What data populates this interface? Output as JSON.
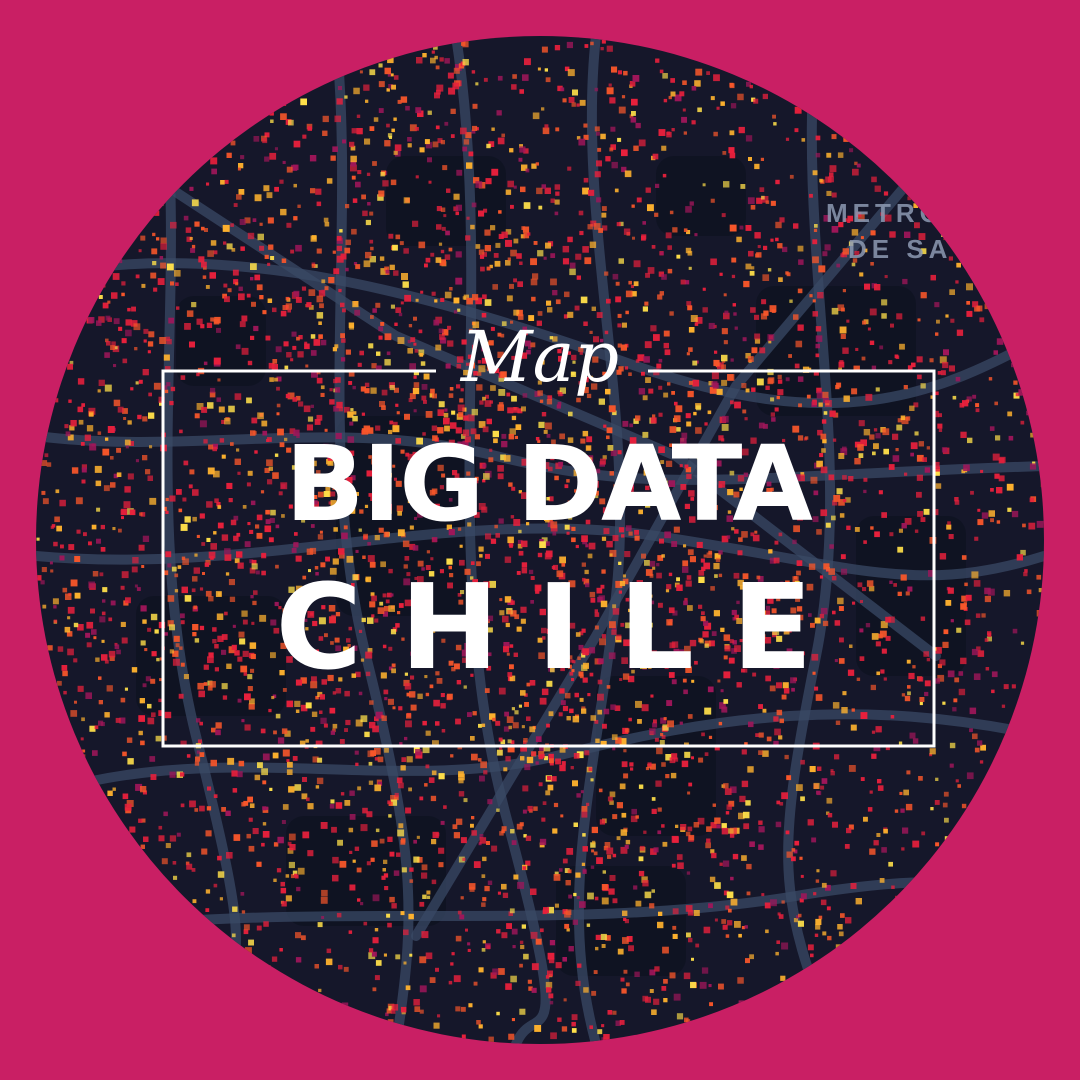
{
  "map": {
    "place_label_line1": "METRO",
    "place_label_line2": "DE SA",
    "colors": {
      "background": "#c91f64",
      "map_base": "#15172a",
      "roads": "#3a4a66",
      "dots": [
        "#e8203c",
        "#f7562a",
        "#ffb22e",
        "#ffe04a",
        "#a0165a"
      ]
    }
  },
  "title": {
    "script": "Map",
    "main": "BIG DATA",
    "sub": "CHILE"
  }
}
